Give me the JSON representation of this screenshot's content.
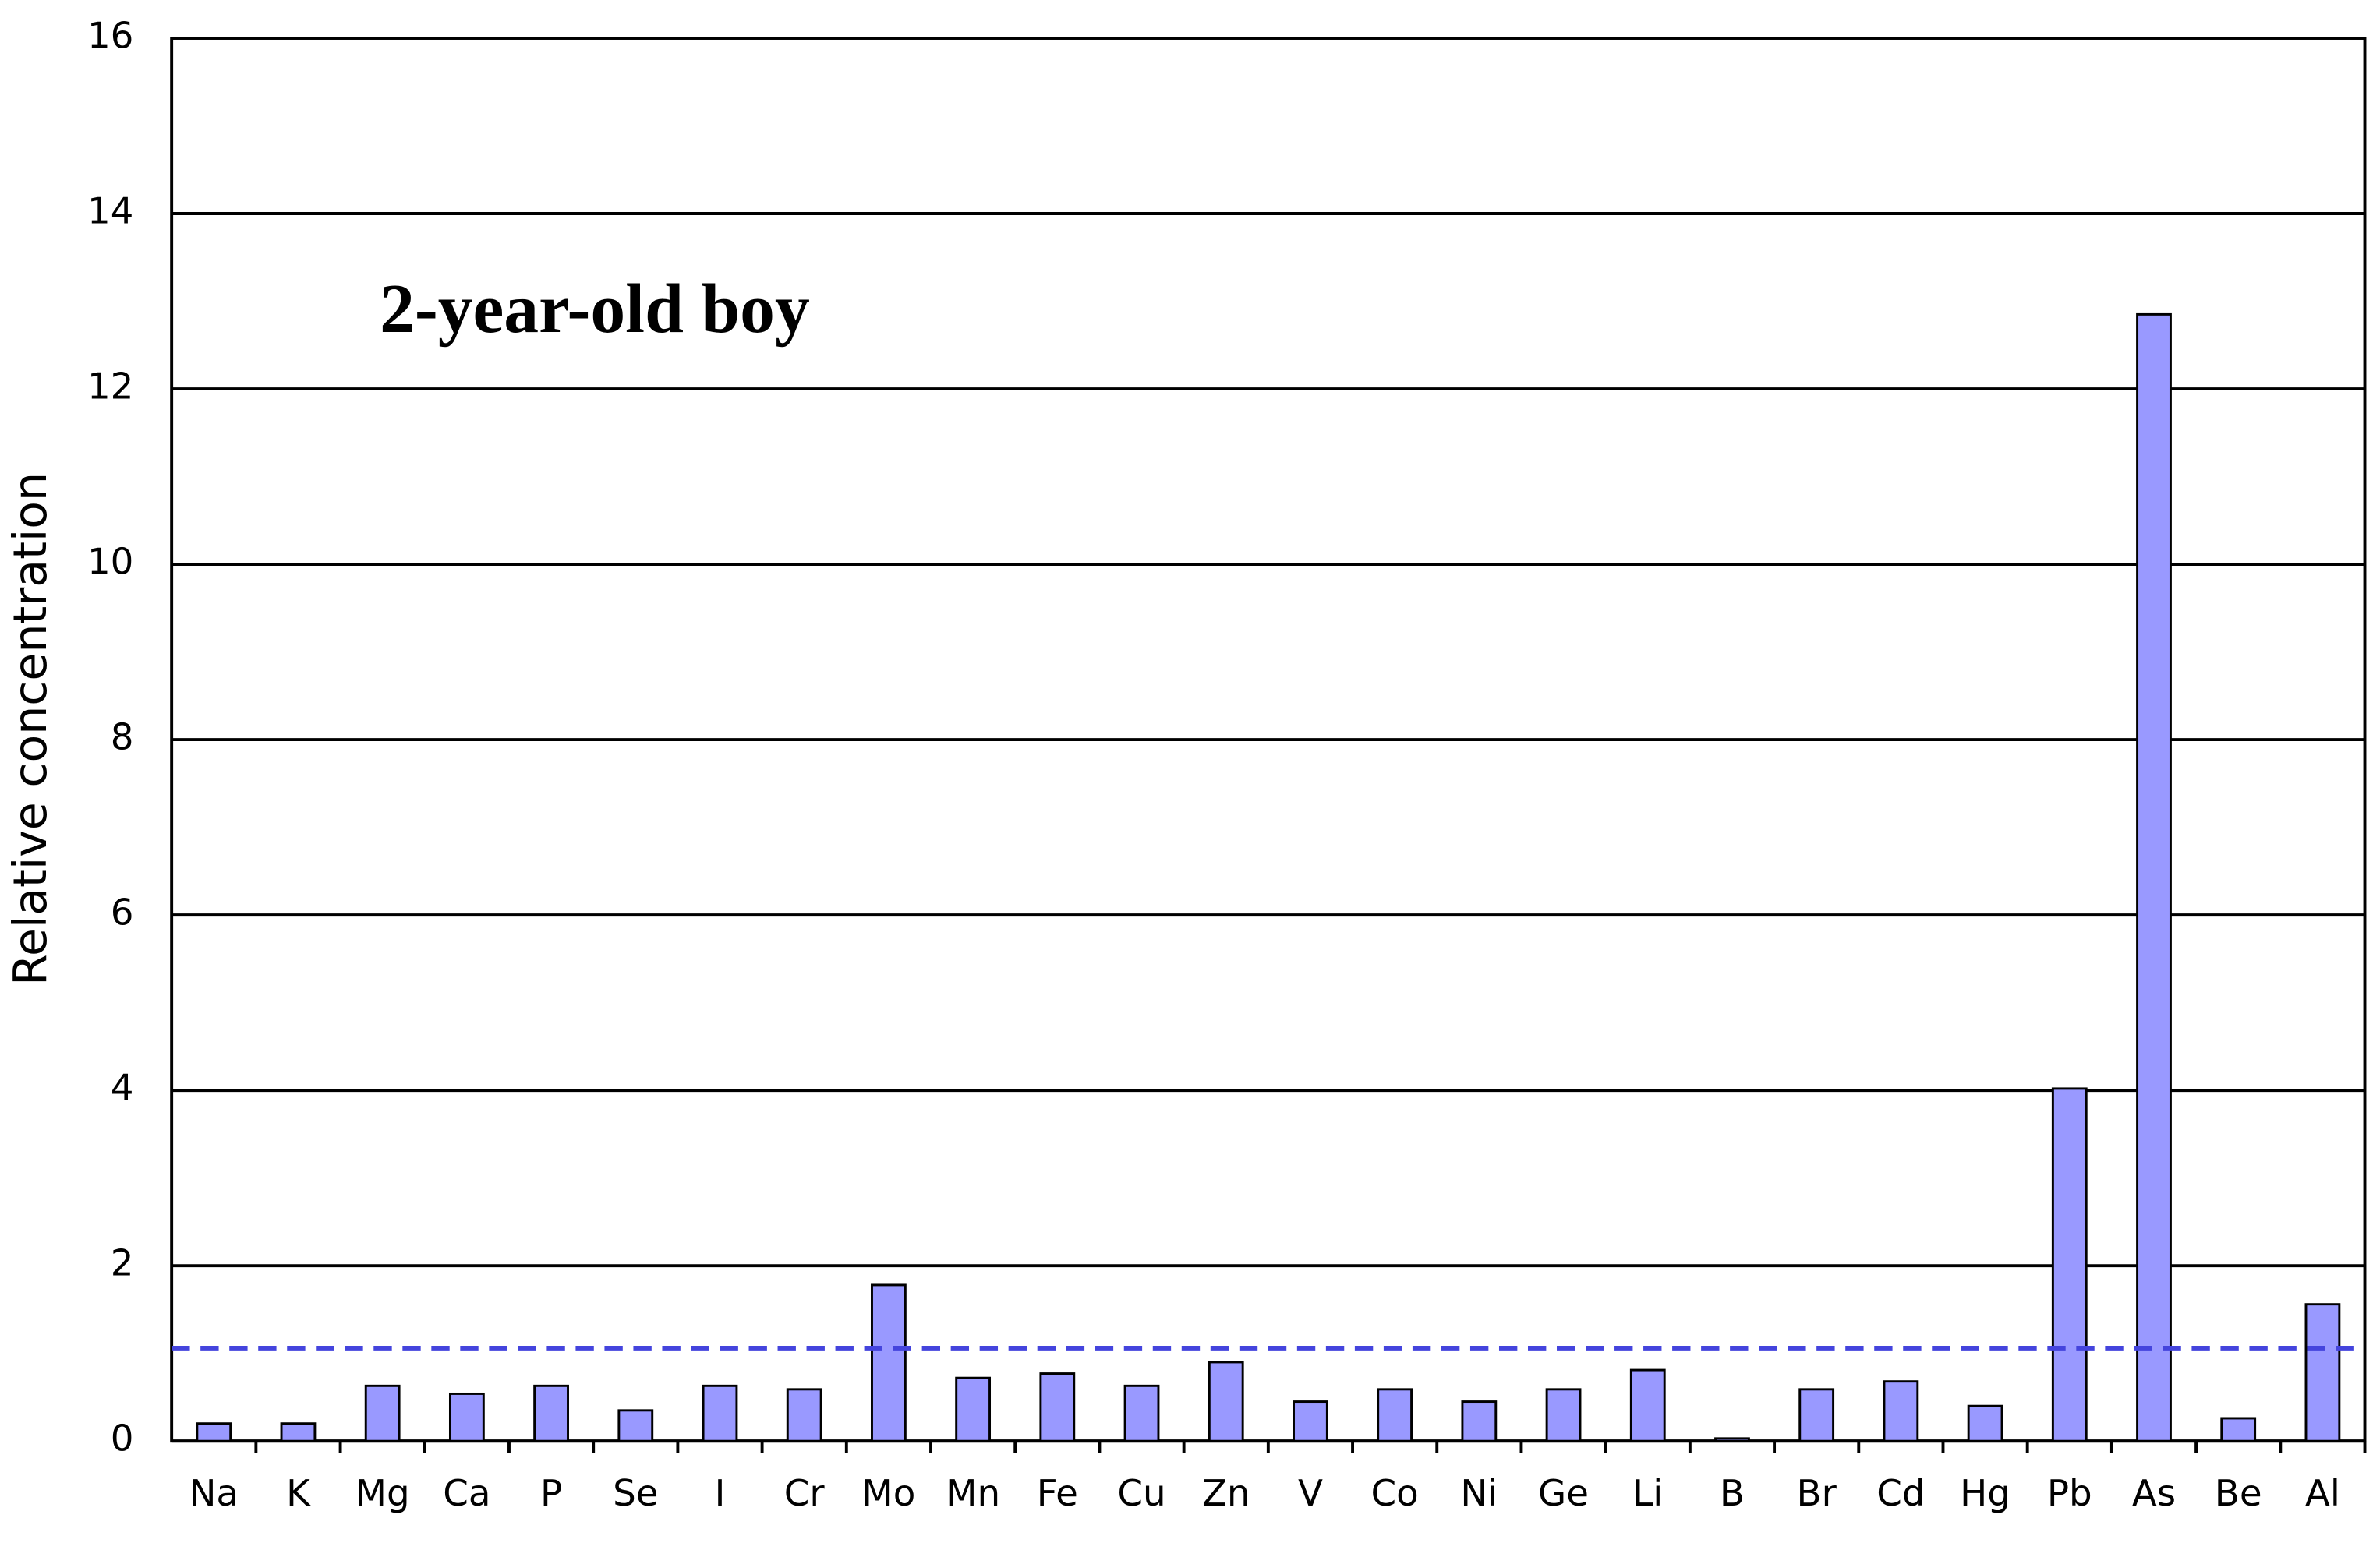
{
  "chart_data": {
    "type": "bar",
    "annotation": "2-year-old boy",
    "y_label": "Relative concentration",
    "categories": [
      "Na",
      "K",
      "Mg",
      "Ca",
      "P",
      "Se",
      "I",
      "Cr",
      "Mo",
      "Mn",
      "Fe",
      "Cu",
      "Zn",
      "V",
      "Co",
      "Ni",
      "Ge",
      "Li",
      "B",
      "Br",
      "Cd",
      "Hg",
      "Pb",
      "As",
      "Be",
      "Al"
    ],
    "values": [
      0.2,
      0.2,
      0.63,
      0.54,
      0.63,
      0.35,
      0.63,
      0.59,
      1.78,
      0.72,
      0.77,
      0.63,
      0.9,
      0.45,
      0.59,
      0.45,
      0.59,
      0.81,
      0.03,
      0.59,
      0.68,
      0.4,
      4.02,
      12.85,
      0.26,
      1.56
    ],
    "color": "#9999ff",
    "reference_line": 1.06,
    "reference_color": "#4444dd",
    "ylim": [
      0,
      16
    ],
    "yticks": [
      0,
      2,
      4,
      6,
      8,
      10,
      12,
      14,
      16
    ],
    "grid": true
  }
}
